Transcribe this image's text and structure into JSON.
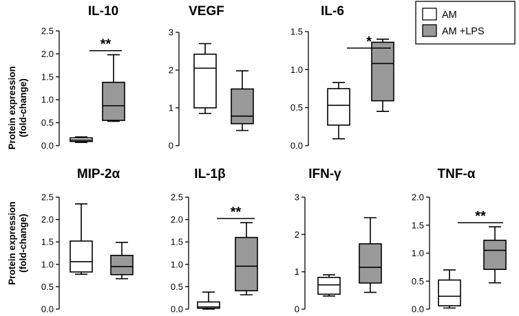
{
  "legend": {
    "items": [
      {
        "label": "AM",
        "fill": "#ffffff"
      },
      {
        "label": "AM +LPS",
        "fill": "#999999"
      }
    ]
  },
  "y_axis_label_line1": "Protein expression",
  "y_axis_label_line2": "(fold-change)",
  "colors": {
    "am": "#ffffff",
    "am_lps": "#999999",
    "stroke": "#000000"
  },
  "chart_data": [
    {
      "type": "box",
      "title": "IL-10",
      "ylim": [
        0,
        2.5
      ],
      "yticks": [
        "0.0",
        "0.5",
        "1.0",
        "1.5",
        "2.0",
        "2.5"
      ],
      "series": [
        {
          "name": "AM",
          "min": 0.07,
          "q1": 0.09,
          "median": 0.12,
          "q3": 0.17,
          "max": 0.19
        },
        {
          "name": "AM +LPS",
          "min": 0.53,
          "q1": 0.55,
          "median": 0.87,
          "q3": 1.38,
          "max": 1.98
        }
      ],
      "significance": "**"
    },
    {
      "type": "box",
      "title": "VEGF",
      "ylim": [
        0,
        3
      ],
      "yticks": [
        "0",
        "1",
        "2",
        "3"
      ],
      "series": [
        {
          "name": "AM",
          "min": 0.85,
          "q1": 1.0,
          "median": 2.05,
          "q3": 2.42,
          "max": 2.7
        },
        {
          "name": "AM +LPS",
          "min": 0.4,
          "q1": 0.58,
          "median": 0.78,
          "q3": 1.5,
          "max": 1.98
        }
      ],
      "significance": ""
    },
    {
      "type": "box",
      "title": "IL-6",
      "ylim": [
        0,
        1.5
      ],
      "yticks": [
        "0.0",
        "0.5",
        "1.0",
        "1.5"
      ],
      "series": [
        {
          "name": "AM",
          "min": 0.09,
          "q1": 0.27,
          "median": 0.53,
          "q3": 0.75,
          "max": 0.83
        },
        {
          "name": "AM +LPS",
          "min": 0.45,
          "q1": 0.59,
          "median": 1.08,
          "q3": 1.36,
          "max": 1.4
        }
      ],
      "significance": "*"
    },
    {
      "type": "box",
      "title": "MIP-2α",
      "ylim": [
        0,
        2.5
      ],
      "yticks": [
        "0.0",
        "0.5",
        "1.0",
        "1.5",
        "2.0",
        "2.5"
      ],
      "series": [
        {
          "name": "AM",
          "min": 0.78,
          "q1": 0.83,
          "median": 1.06,
          "q3": 1.52,
          "max": 2.35
        },
        {
          "name": "AM +LPS",
          "min": 0.68,
          "q1": 0.77,
          "median": 0.95,
          "q3": 1.2,
          "max": 1.49
        }
      ],
      "significance": ""
    },
    {
      "type": "box",
      "title": "IL-1β",
      "ylim": [
        0,
        2.5
      ],
      "yticks": [
        "0.0",
        "0.5",
        "1.0",
        "1.5",
        "2.0",
        "2.5"
      ],
      "series": [
        {
          "name": "AM",
          "min": 0.0,
          "q1": 0.02,
          "median": 0.05,
          "q3": 0.16,
          "max": 0.38
        },
        {
          "name": "AM +LPS",
          "min": 0.32,
          "q1": 0.41,
          "median": 0.96,
          "q3": 1.6,
          "max": 1.93
        }
      ],
      "significance": "**"
    },
    {
      "type": "box",
      "title": "IFN-γ",
      "ylim": [
        0,
        3
      ],
      "yticks": [
        "0",
        "1",
        "2",
        "3"
      ],
      "series": [
        {
          "name": "AM",
          "min": 0.35,
          "q1": 0.4,
          "median": 0.65,
          "q3": 0.85,
          "max": 0.92
        },
        {
          "name": "AM +LPS",
          "min": 0.45,
          "q1": 0.7,
          "median": 1.12,
          "q3": 1.75,
          "max": 2.45
        }
      ],
      "significance": ""
    },
    {
      "type": "box",
      "title": "TNF-α",
      "ylim": [
        0,
        2.0
      ],
      "yticks": [
        "0.0",
        "0.5",
        "1.0",
        "1.5",
        "2.0"
      ],
      "series": [
        {
          "name": "AM",
          "min": 0.02,
          "q1": 0.06,
          "median": 0.23,
          "q3": 0.52,
          "max": 0.7
        },
        {
          "name": "AM +LPS",
          "min": 0.47,
          "q1": 0.71,
          "median": 1.05,
          "q3": 1.23,
          "max": 1.47
        }
      ],
      "significance": "**"
    }
  ]
}
